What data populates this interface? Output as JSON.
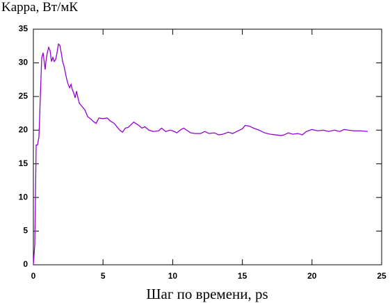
{
  "chart_data": {
    "type": "line",
    "ylabel": "Kappa, Вт/мК",
    "xlabel": "Шаг по времени, ps",
    "x": [
      0,
      0.1,
      0.15,
      0.2,
      0.3,
      0.4,
      0.5,
      0.6,
      0.7,
      0.8,
      0.85,
      0.9,
      1.0,
      1.1,
      1.2,
      1.3,
      1.4,
      1.5,
      1.6,
      1.7,
      1.8,
      1.9,
      2.0,
      2.1,
      2.2,
      2.3,
      2.4,
      2.5,
      2.6,
      2.7,
      2.8,
      2.9,
      3.0,
      3.1,
      3.2,
      3.3,
      3.5,
      3.7,
      3.9,
      4.1,
      4.3,
      4.5,
      4.7,
      5.0,
      5.3,
      5.5,
      5.8,
      6.0,
      6.2,
      6.4,
      6.6,
      6.8,
      7.0,
      7.2,
      7.5,
      7.8,
      8.0,
      8.3,
      8.6,
      9.0,
      9.2,
      9.5,
      9.8,
      10.0,
      10.3,
      10.6,
      10.8,
      11.0,
      11.3,
      11.6,
      12.0,
      12.3,
      12.6,
      13.0,
      13.3,
      13.6,
      14.0,
      14.3,
      14.6,
      15.0,
      15.2,
      15.5,
      15.8,
      16.2,
      16.6,
      17.0,
      17.4,
      17.8,
      18.0,
      18.3,
      18.6,
      19.0,
      19.3,
      19.6,
      20.0,
      20.4,
      20.8,
      21.2,
      21.6,
      22.0,
      22.3,
      22.6,
      23.0,
      23.5,
      24.0
    ],
    "series": [
      {
        "color": "#9400d3",
        "values": [
          0,
          3,
          10,
          17.8,
          17.8,
          19,
          25,
          30.8,
          31.5,
          29.8,
          29,
          30.2,
          31.5,
          32.3,
          31.8,
          30.2,
          30.8,
          30.2,
          30.5,
          31.5,
          32.8,
          32.6,
          31.5,
          30.2,
          29.5,
          28.5,
          27.5,
          26.8,
          26.3,
          26.8,
          26,
          25.5,
          24.8,
          25.8,
          24.8,
          24,
          23.5,
          23,
          22,
          21.7,
          21.3,
          21,
          21.8,
          21.7,
          21.8,
          21.4,
          21,
          20.5,
          20,
          19.7,
          20.3,
          20.4,
          20.8,
          21.2,
          20.8,
          20.3,
          20.5,
          20,
          19.8,
          19.9,
          20.3,
          19.8,
          20,
          19.9,
          19.6,
          20.1,
          20.3,
          20,
          19.6,
          19.5,
          19.5,
          19.8,
          19.5,
          19.6,
          19.3,
          19.4,
          19.7,
          19.5,
          19.8,
          20.2,
          20.7,
          20.6,
          20.3,
          20,
          19.6,
          19.4,
          19.3,
          19.2,
          19.3,
          19.6,
          19.4,
          19.5,
          19.3,
          19.8,
          20.1,
          19.9,
          20,
          19.8,
          20,
          19.8,
          20.1,
          20,
          19.9,
          19.9,
          19.8
        ]
      }
    ],
    "xlim": [
      0,
      25
    ],
    "xticks": [
      0,
      5,
      10,
      15,
      20,
      25
    ],
    "ylim": [
      0,
      35
    ],
    "yticks": [
      0,
      5,
      10,
      15,
      20,
      25,
      30,
      35
    ],
    "grid": false
  }
}
